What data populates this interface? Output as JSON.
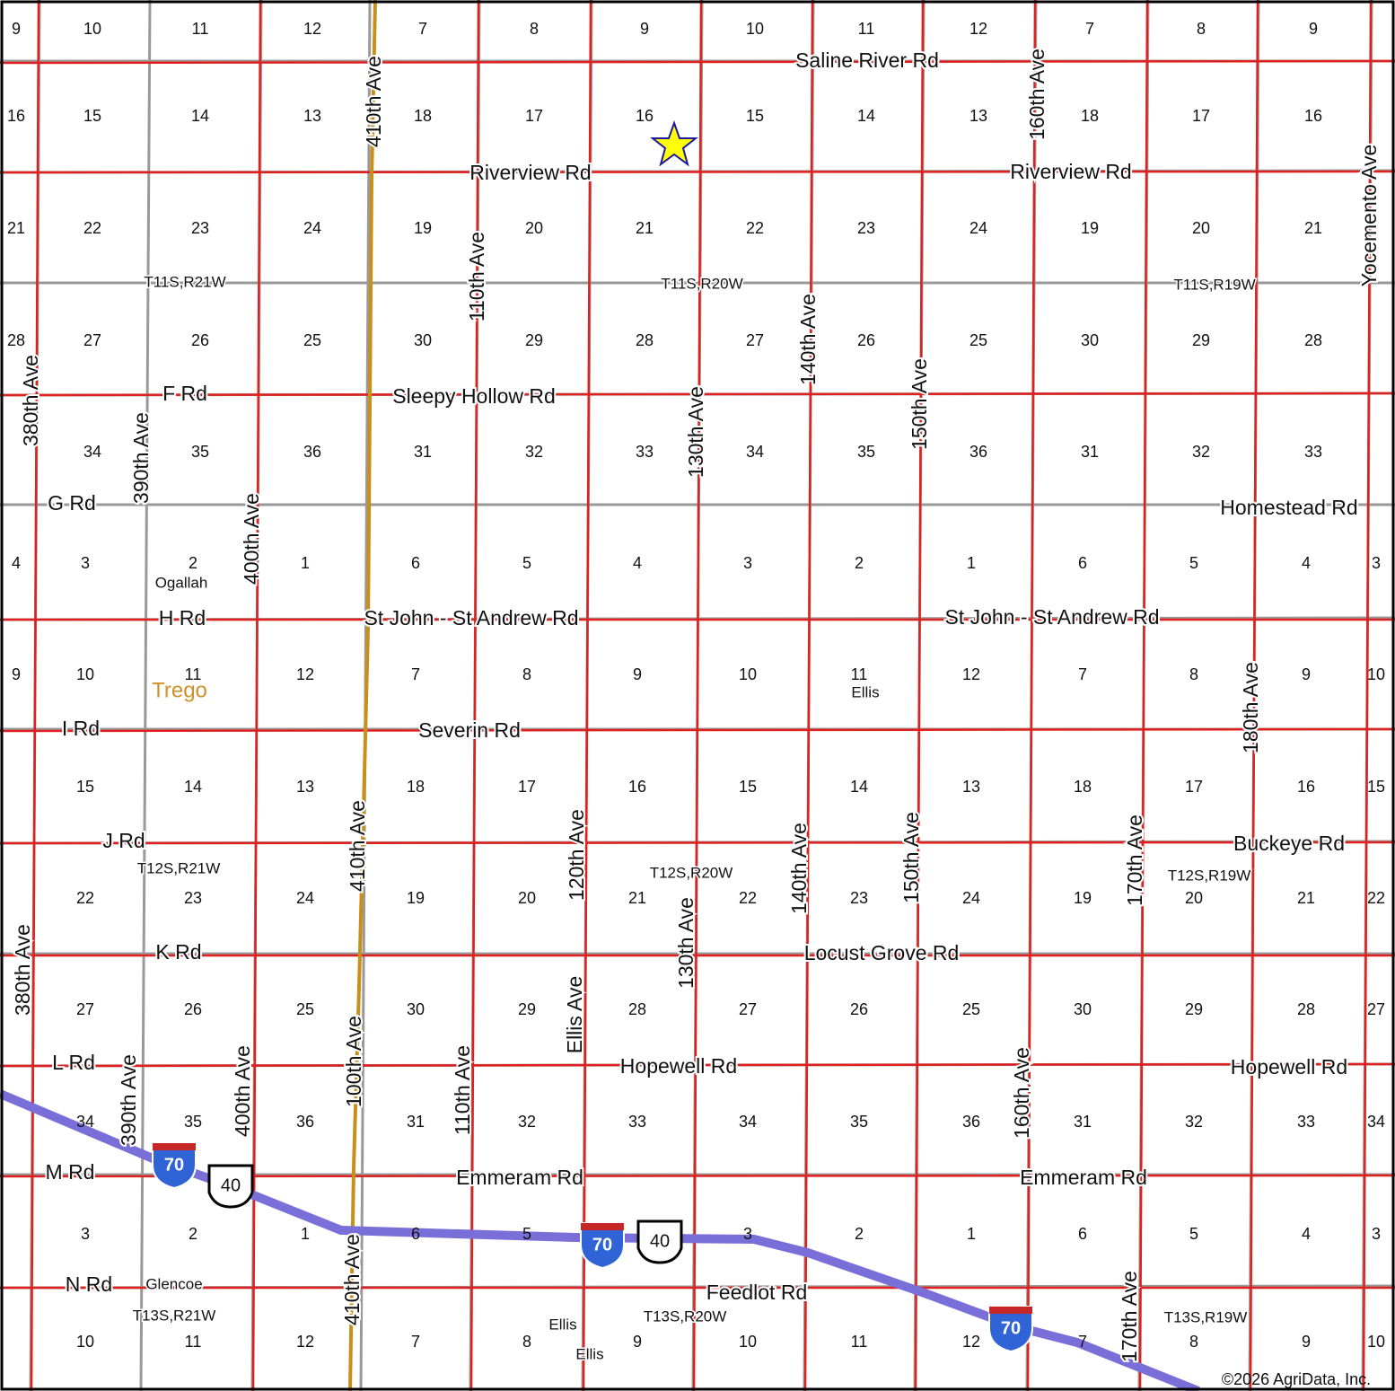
{
  "sections": [
    [
      9,
      10,
      11,
      12,
      7,
      8,
      9,
      10,
      11,
      12,
      7,
      8,
      9,
      null
    ],
    [
      16,
      15,
      14,
      13,
      18,
      17,
      16,
      15,
      14,
      13,
      18,
      17,
      16,
      null
    ],
    [
      21,
      22,
      23,
      24,
      19,
      20,
      21,
      22,
      23,
      24,
      19,
      20,
      21,
      null
    ],
    [
      28,
      27,
      26,
      25,
      30,
      29,
      28,
      27,
      26,
      25,
      30,
      29,
      28,
      null
    ],
    [
      null,
      34,
      35,
      36,
      31,
      32,
      33,
      34,
      35,
      36,
      31,
      32,
      33,
      null
    ],
    [
      4,
      3,
      2,
      1,
      6,
      5,
      4,
      3,
      2,
      1,
      6,
      5,
      4,
      3
    ],
    [
      9,
      10,
      11,
      12,
      7,
      8,
      9,
      10,
      11,
      12,
      7,
      8,
      9,
      10
    ],
    [
      null,
      15,
      14,
      13,
      18,
      17,
      16,
      15,
      14,
      13,
      18,
      17,
      16,
      15
    ],
    [
      null,
      22,
      23,
      24,
      19,
      20,
      21,
      22,
      23,
      24,
      19,
      20,
      21,
      22
    ],
    [
      null,
      27,
      26,
      25,
      30,
      29,
      28,
      27,
      26,
      25,
      30,
      29,
      28,
      27
    ],
    [
      null,
      34,
      35,
      36,
      31,
      32,
      33,
      34,
      35,
      36,
      31,
      32,
      33,
      34
    ],
    [
      null,
      3,
      2,
      1,
      6,
      5,
      null,
      3,
      2,
      1,
      6,
      5,
      4,
      3
    ],
    [
      null,
      10,
      11,
      12,
      7,
      8,
      9,
      10,
      11,
      12,
      7,
      8,
      9,
      10
    ]
  ],
  "roads": [
    "Saline River Rd",
    "Riverview Rd",
    "Riverview Rd",
    "F Rd",
    "Sleepy Hollow Rd",
    "G Rd",
    "Homestead Rd",
    "H Rd",
    "St John - St Andrew Rd",
    "St John - St Andrew Rd",
    "I Rd",
    "Severin Rd",
    "J Rd",
    "Buckeye Rd",
    "K Rd",
    "Locust Grove Rd",
    "L Rd",
    "Hopewell Rd",
    "Hopewell Rd",
    "M Rd",
    "Emmeram Rd",
    "Emmeram Rd",
    "N Rd",
    "Feedlot Rd"
  ],
  "avenues": [
    "410th Ave",
    "160th Ave",
    "Yocemento Ave",
    "110th Ave",
    "140th Ave",
    "380th Ave",
    "130th Ave",
    "150th Ave",
    "390th Ave",
    "400th Ave",
    "180th Ave",
    "410th Ave",
    "120th Ave",
    "140th Ave",
    "150th Ave",
    "170th Ave",
    "130th Ave",
    "380th Ave",
    "Ellis Ave",
    "160th Ave",
    "110th Ave",
    "100th Ave",
    "390th Ave",
    "400th Ave",
    "410th Ave",
    "170th Ave"
  ],
  "townships": [
    "T11S,R21W",
    "T11S,R20W",
    "T11S,R19W",
    "T12S,R21W",
    "T12S,R20W",
    "T12S,R19W",
    "T13S,R21W",
    "T13S,R20W",
    "T13S,R19W"
  ],
  "places": [
    "Ogallah",
    "Trego",
    "Ellis",
    "Glencoe",
    "Ellis",
    "Ellis"
  ],
  "shields": {
    "interstate": [
      "70",
      "70",
      "70"
    ],
    "us": [
      "40",
      "40"
    ]
  },
  "copyright": "©2026 AgriData, Inc."
}
